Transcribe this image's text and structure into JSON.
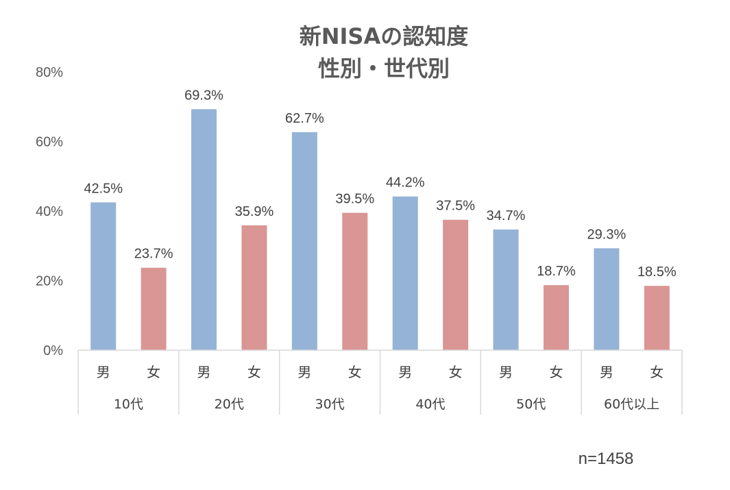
{
  "chart_data": {
    "type": "bar",
    "title": "新NISAの認知度",
    "subtitle": "性別・世代別",
    "groups": [
      "10代",
      "20代",
      "30代",
      "40代",
      "50代",
      "60代以上"
    ],
    "subcategories": [
      "男",
      "女"
    ],
    "series": [
      {
        "values": [
          42.5,
          69.3,
          62.7,
          44.2,
          34.7,
          29.3
        ]
      },
      {
        "values": [
          23.7,
          35.9,
          39.5,
          37.5,
          18.7,
          18.5
        ]
      }
    ],
    "data_labels": {
      "male": [
        "42.5%",
        "69.3%",
        "62.7%",
        "44.2%",
        "34.7%",
        "29.3%"
      ],
      "female": [
        "23.7%",
        "35.9%",
        "39.5%",
        "37.5%",
        "18.7%",
        "18.5%"
      ]
    },
    "y_ticks": [
      "0%",
      "20%",
      "40%",
      "60%",
      "80%"
    ],
    "ylim": [
      0,
      80
    ],
    "grid": false,
    "colors": {
      "male": "#95b3d7",
      "female": "#d99694",
      "axis": "#d9d9d9"
    }
  },
  "note": "n=1458"
}
